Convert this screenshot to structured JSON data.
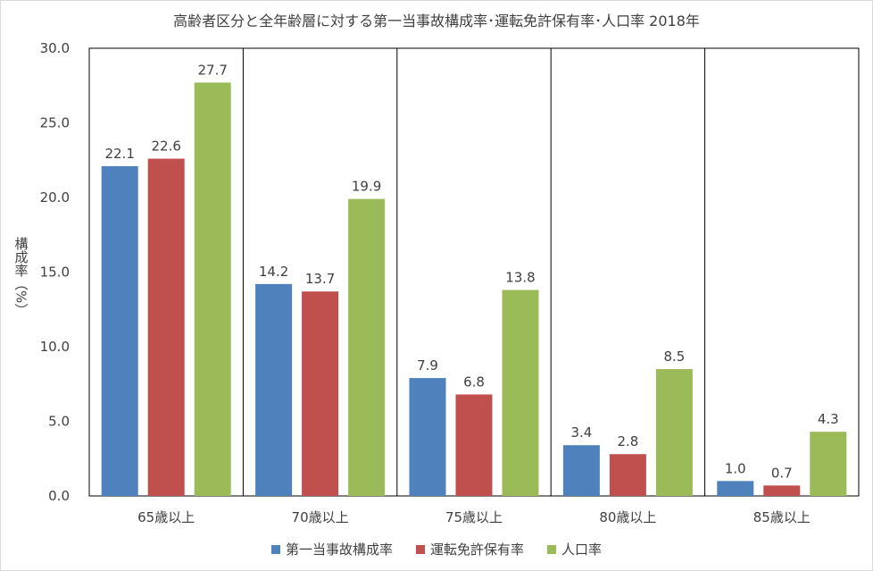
{
  "chart_data": {
    "type": "bar",
    "title": "高齢者区分と全年齢層に対する第一当事故構成率･運転免許保有率･人口率 2018年",
    "xlabel": "",
    "ylabel": "構成率（%）",
    "ylim": [
      0,
      30
    ],
    "y_ticks": [
      "0.0",
      "5.0",
      "10.0",
      "15.0",
      "20.0",
      "25.0",
      "30.0"
    ],
    "categories": [
      "65歳以上",
      "70歳以上",
      "75歳以上",
      "80歳以上",
      "85歳以上"
    ],
    "series": [
      {
        "name": "第一当事故構成率",
        "color": "#4f81bd",
        "values": [
          22.1,
          14.2,
          7.9,
          3.4,
          1.0
        ],
        "labels": [
          "22.1",
          "14.2",
          "7.9",
          "3.4",
          "1.0"
        ]
      },
      {
        "name": "運転免許保有率",
        "color": "#c0504d",
        "values": [
          22.6,
          13.7,
          6.8,
          2.8,
          0.7
        ],
        "labels": [
          "22.6",
          "13.7",
          "6.8",
          "2.8",
          "0.7"
        ]
      },
      {
        "name": "人口率",
        "color": "#9bbb59",
        "values": [
          27.7,
          19.9,
          13.8,
          8.5,
          4.3
        ],
        "labels": [
          "27.7",
          "19.9",
          "13.8",
          "8.5",
          "4.3"
        ]
      }
    ],
    "grid": false,
    "legend_position": "bottom"
  }
}
